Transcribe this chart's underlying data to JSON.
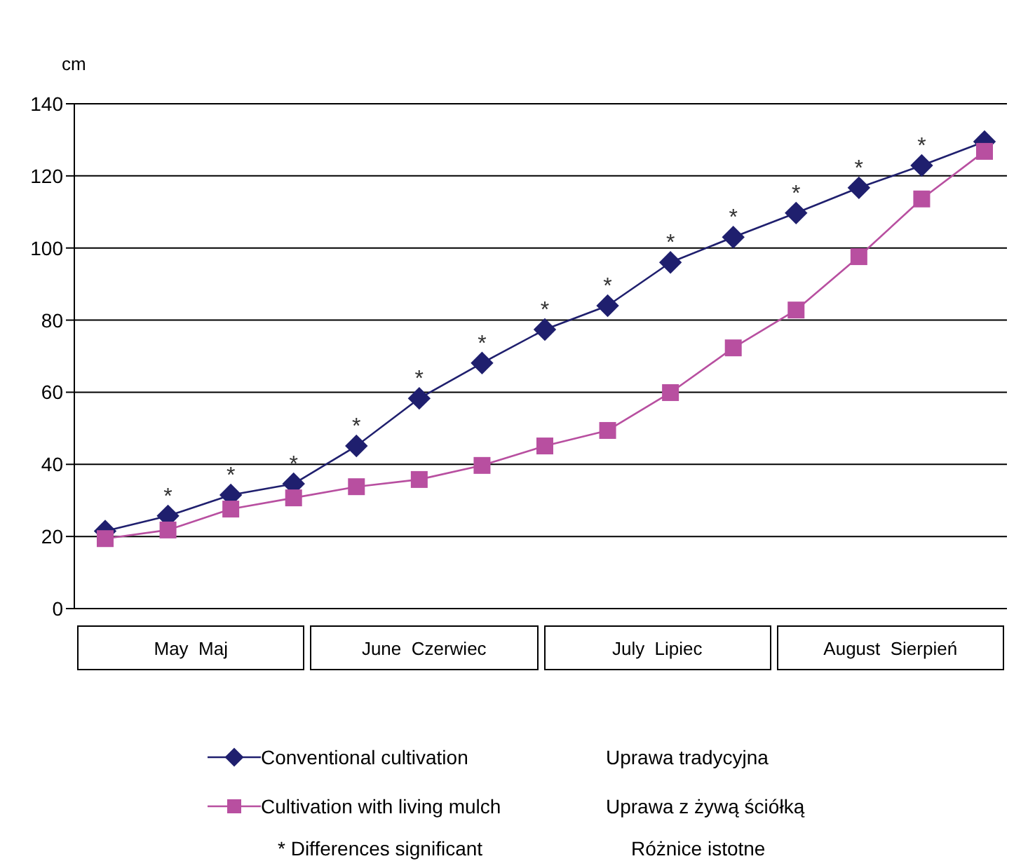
{
  "chart_data": {
    "type": "line",
    "ylabel": "cm",
    "categories": [
      null,
      null,
      null,
      null,
      null,
      null,
      null,
      null,
      null,
      null,
      null,
      null,
      null,
      null,
      null
    ],
    "series": [
      {
        "name": "Conventional cultivation",
        "color": "#1f1f6e",
        "marker": "diamond",
        "values": [
          21.5,
          25.7,
          31.5,
          34.6,
          45.1,
          58.3,
          68.1,
          77.4,
          84,
          96,
          103,
          109.7,
          116.7,
          122.9,
          129.5
        ],
        "value_labels": [
          null,
          "*",
          "*",
          "*",
          "*",
          "*",
          "*",
          "*",
          "*",
          "*",
          "*",
          "*",
          "*",
          "*",
          null
        ]
      },
      {
        "name": "Cultivation with living mulch",
        "color": "#b84fa0",
        "marker": "square",
        "values": [
          19.4,
          21.8,
          27.6,
          30.7,
          33.8,
          35.8,
          39.7,
          45.1,
          49.4,
          59.9,
          72.3,
          82.8,
          97.6,
          113.6,
          126.8
        ]
      }
    ],
    "ylim": [
      0,
      140
    ],
    "yticks": [
      0,
      20,
      40,
      60,
      80,
      100,
      120,
      140
    ],
    "grid": "y",
    "legend": "bottom",
    "line_style": "solid",
    "annotations": [
      "May  Maj",
      "June  Czerwiec",
      "July  Lipiec",
      "August  Sierpień",
      "Uprawa tradycyjna",
      "Uprawa z żywą ściółką",
      "* Differences significant",
      "Różnice istotne"
    ]
  }
}
